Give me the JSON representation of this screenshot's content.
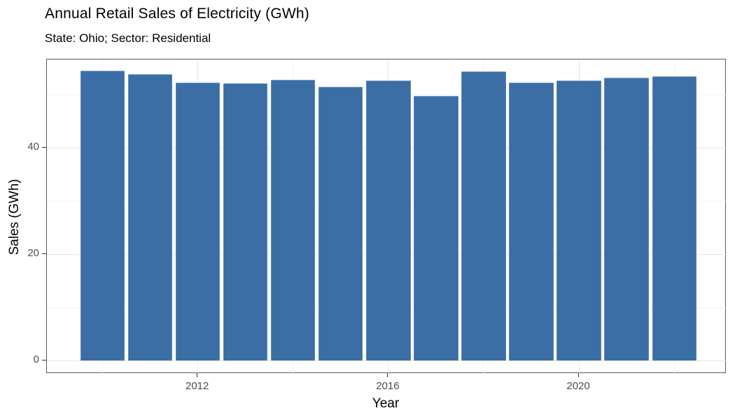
{
  "chart_data": {
    "type": "bar",
    "title": "Annual Retail Sales of Electricity (GWh)",
    "subtitle": "State: Ohio; Sector: Residential",
    "xlabel": "Year",
    "ylabel": "Sales (GWh)",
    "categories": [
      2010,
      2011,
      2012,
      2013,
      2014,
      2015,
      2016,
      2017,
      2018,
      2019,
      2020,
      2021,
      2022
    ],
    "values": [
      54.5,
      53.8,
      52.3,
      52.1,
      52.8,
      51.5,
      52.6,
      49.7,
      54.4,
      52.2,
      52.6,
      53.2,
      53.4
    ],
    "xlim": [
      2008.83,
      2023.1
    ],
    "ylim": [
      -2.5,
      56.6
    ],
    "x_breaks": [
      2012,
      2016,
      2020
    ],
    "x_minor_breaks": [
      2010,
      2014,
      2018,
      2022
    ],
    "y_breaks": [
      0,
      20,
      40
    ],
    "y_minor_breaks": [
      10,
      30,
      50
    ],
    "bar_width_years": 0.93,
    "grid": true,
    "legend": "none"
  },
  "theme": {
    "bar_color": "#3A6EA5",
    "panel_border": "#595959",
    "grid_major": "#E5E5E5",
    "grid_minor": "#F1F1F1",
    "tick_color": "#333333",
    "tick_label_color": "#4D4D4D",
    "text_color": "#000000",
    "background": "#FFFFFF"
  }
}
